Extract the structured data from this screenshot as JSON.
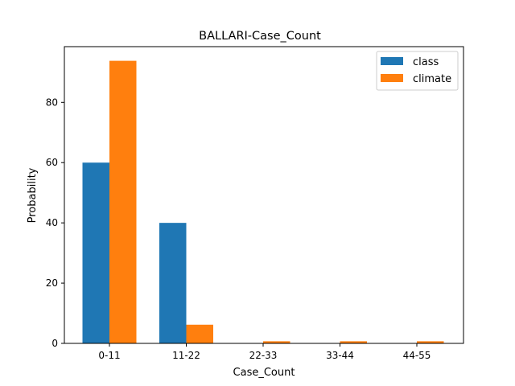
{
  "chart_data": {
    "type": "bar",
    "title": "BALLARI-Case_Count",
    "xlabel": "Case_Count",
    "ylabel": "Probability",
    "categories": [
      "0-11",
      "11-22",
      "22-33",
      "33-44",
      "44-55"
    ],
    "series": [
      {
        "name": "class",
        "color": "#1f77b4",
        "values": [
          60,
          40,
          0,
          0,
          0
        ]
      },
      {
        "name": "climate",
        "color": "#ff7f0e",
        "values": [
          93.8,
          6.2,
          0.7,
          0.7,
          0.7
        ]
      }
    ],
    "ylim": [
      0,
      98.5
    ],
    "yticks": [
      0,
      20,
      40,
      60,
      80
    ],
    "grid": false,
    "legend": "top-right"
  }
}
